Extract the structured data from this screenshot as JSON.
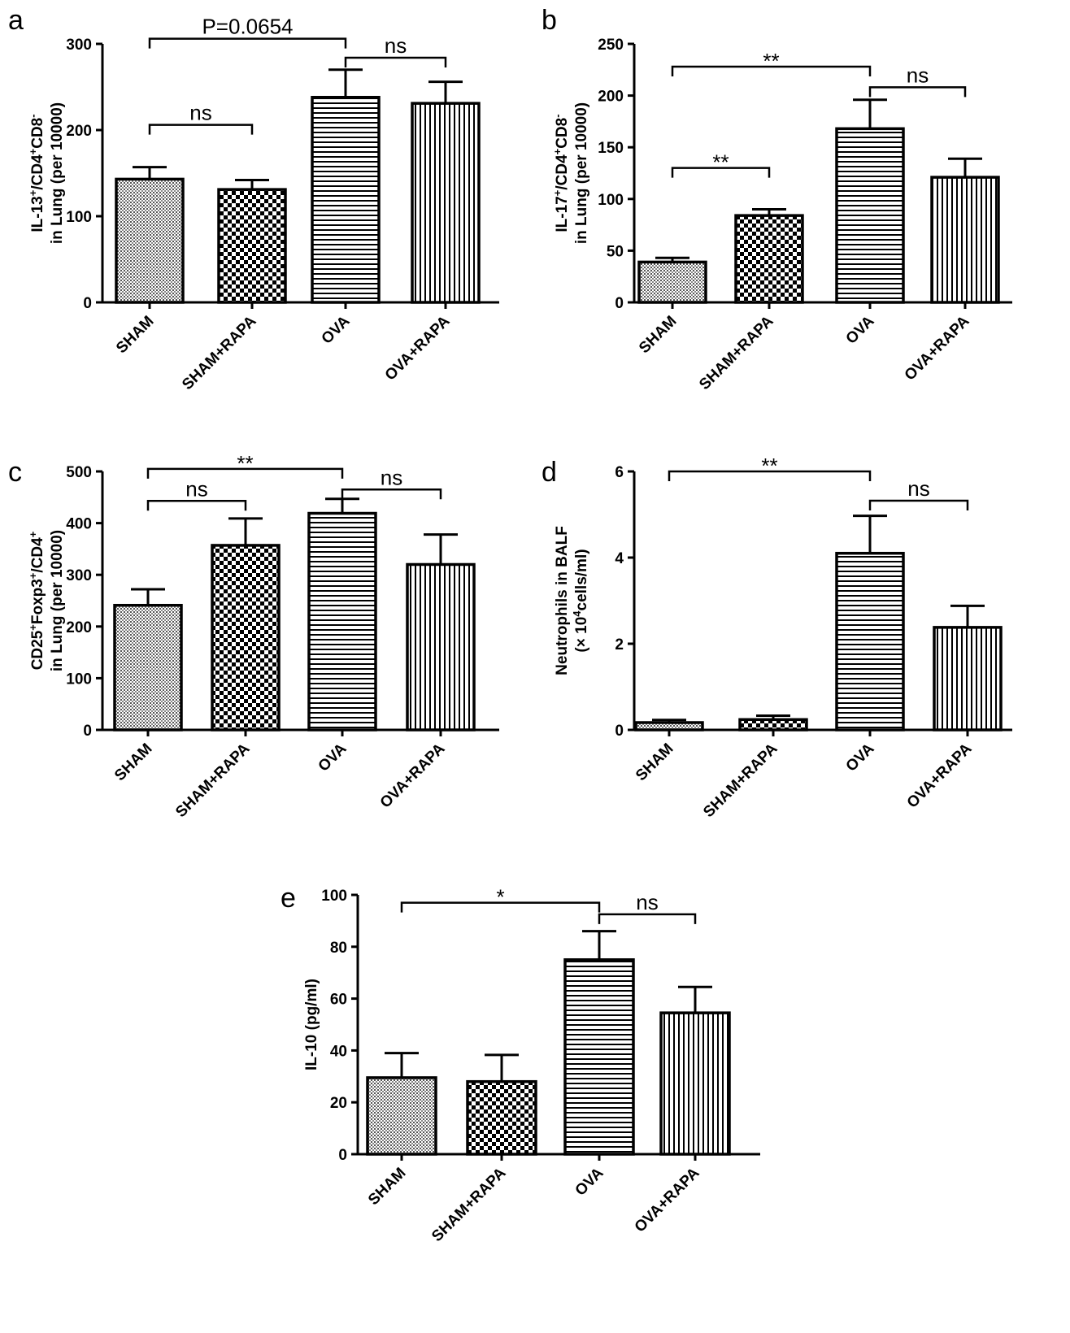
{
  "chart_data": [
    {
      "panel": "a",
      "type": "bar",
      "categories": [
        "SHAM",
        "SHAM+RAPA",
        "OVA",
        "OVA+RAPA"
      ],
      "values": [
        143,
        131,
        238,
        231
      ],
      "errors": [
        14,
        11,
        32,
        25
      ],
      "patterns": [
        "dots",
        "checker",
        "hlines",
        "vlines"
      ],
      "ylabel_lines": [
        [
          {
            "t": "IL-13"
          },
          {
            "t": "+",
            "s": true
          },
          {
            "t": "/CD4"
          },
          {
            "t": "+",
            "s": true
          },
          {
            "t": "CD8"
          },
          {
            "t": "-",
            "s": true
          }
        ],
        [
          {
            "t": "in Lung (per 10000)"
          }
        ]
      ],
      "ylim": [
        0,
        300
      ],
      "yticks": [
        0,
        100,
        200,
        300
      ],
      "significance": [
        {
          "from": 0,
          "to": 2,
          "label": "P=0.0654",
          "y": 306
        },
        {
          "from": 0,
          "to": 1,
          "label": "ns",
          "y": 206
        },
        {
          "from": 2,
          "to": 3,
          "label": "ns",
          "y": 284
        }
      ]
    },
    {
      "panel": "b",
      "type": "bar",
      "categories": [
        "SHAM",
        "SHAM+RAPA",
        "OVA",
        "OVA+RAPA"
      ],
      "values": [
        39,
        84,
        168,
        121
      ],
      "errors": [
        4,
        6,
        28,
        18
      ],
      "patterns": [
        "dots",
        "checker",
        "hlines",
        "vlines"
      ],
      "ylabel_lines": [
        [
          {
            "t": "IL-17"
          },
          {
            "t": "+",
            "s": true
          },
          {
            "t": "/CD4"
          },
          {
            "t": "+",
            "s": true
          },
          {
            "t": "CD8"
          },
          {
            "t": "-",
            "s": true
          }
        ],
        [
          {
            "t": "in Lung (per 10000)"
          }
        ]
      ],
      "ylim": [
        0,
        250
      ],
      "yticks": [
        0,
        50,
        100,
        150,
        200,
        250
      ],
      "significance": [
        {
          "from": 0,
          "to": 2,
          "label": "**",
          "y": 228
        },
        {
          "from": 0,
          "to": 1,
          "label": "**",
          "y": 130
        },
        {
          "from": 2,
          "to": 3,
          "label": "ns",
          "y": 208
        }
      ]
    },
    {
      "panel": "c",
      "type": "bar",
      "categories": [
        "SHAM",
        "SHAM+RAPA",
        "OVA",
        "OVA+RAPA"
      ],
      "values": [
        241,
        357,
        419,
        320
      ],
      "errors": [
        31,
        52,
        28,
        58
      ],
      "patterns": [
        "dots",
        "checker",
        "hlines",
        "vlines"
      ],
      "ylabel_lines": [
        [
          {
            "t": "CD25"
          },
          {
            "t": "+",
            "s": true
          },
          {
            "t": "Foxp3"
          },
          {
            "t": "+",
            "s": true
          },
          {
            "t": "/CD4"
          },
          {
            "t": "+",
            "s": true
          }
        ],
        [
          {
            "t": "in Lung (per 10000)"
          }
        ]
      ],
      "ylim": [
        0,
        500
      ],
      "yticks": [
        0,
        100,
        200,
        300,
        400,
        500
      ],
      "significance": [
        {
          "from": 0,
          "to": 2,
          "label": "**",
          "y": 505
        },
        {
          "from": 0,
          "to": 1,
          "label": "ns",
          "y": 443
        },
        {
          "from": 2,
          "to": 3,
          "label": "ns",
          "y": 465
        }
      ]
    },
    {
      "panel": "d",
      "type": "bar",
      "categories": [
        "SHAM",
        "SHAM+RAPA",
        "OVA",
        "OVA+RAPA"
      ],
      "values": [
        0.17,
        0.24,
        4.1,
        2.38
      ],
      "errors": [
        0.06,
        0.09,
        0.87,
        0.5
      ],
      "patterns": [
        "dots",
        "checker",
        "hlines",
        "vlines"
      ],
      "ylabel_lines": [
        [
          {
            "t": "Neutrophils in BALF"
          }
        ],
        [
          {
            "t": "(× 10"
          },
          {
            "t": "4",
            "s": true
          },
          {
            "t": "cells/ml)"
          }
        ]
      ],
      "ylim": [
        0,
        6
      ],
      "yticks": [
        0,
        2,
        4,
        6
      ],
      "significance": [
        {
          "from": 0,
          "to": 2,
          "label": "**",
          "y": 6.0
        },
        {
          "from": 2,
          "to": 3,
          "label": "ns",
          "y": 5.32
        }
      ]
    },
    {
      "panel": "e",
      "type": "bar",
      "categories": [
        "SHAM",
        "SHAM+RAPA",
        "OVA",
        "OVA+RAPA"
      ],
      "values": [
        29.5,
        28,
        75,
        54.5
      ],
      "errors": [
        9.5,
        10.3,
        11,
        10
      ],
      "patterns": [
        "dots",
        "checker",
        "hlines",
        "vlines"
      ],
      "ylabel_lines": [
        [
          {
            "t": "IL-10 (pg/ml)"
          }
        ]
      ],
      "ylim": [
        0,
        100
      ],
      "yticks": [
        0,
        20,
        40,
        60,
        80,
        100
      ],
      "significance": [
        {
          "from": 0,
          "to": 2,
          "label": "*",
          "y": 97
        },
        {
          "from": 2,
          "to": 3,
          "label": "ns",
          "y": 92.5
        }
      ]
    }
  ]
}
